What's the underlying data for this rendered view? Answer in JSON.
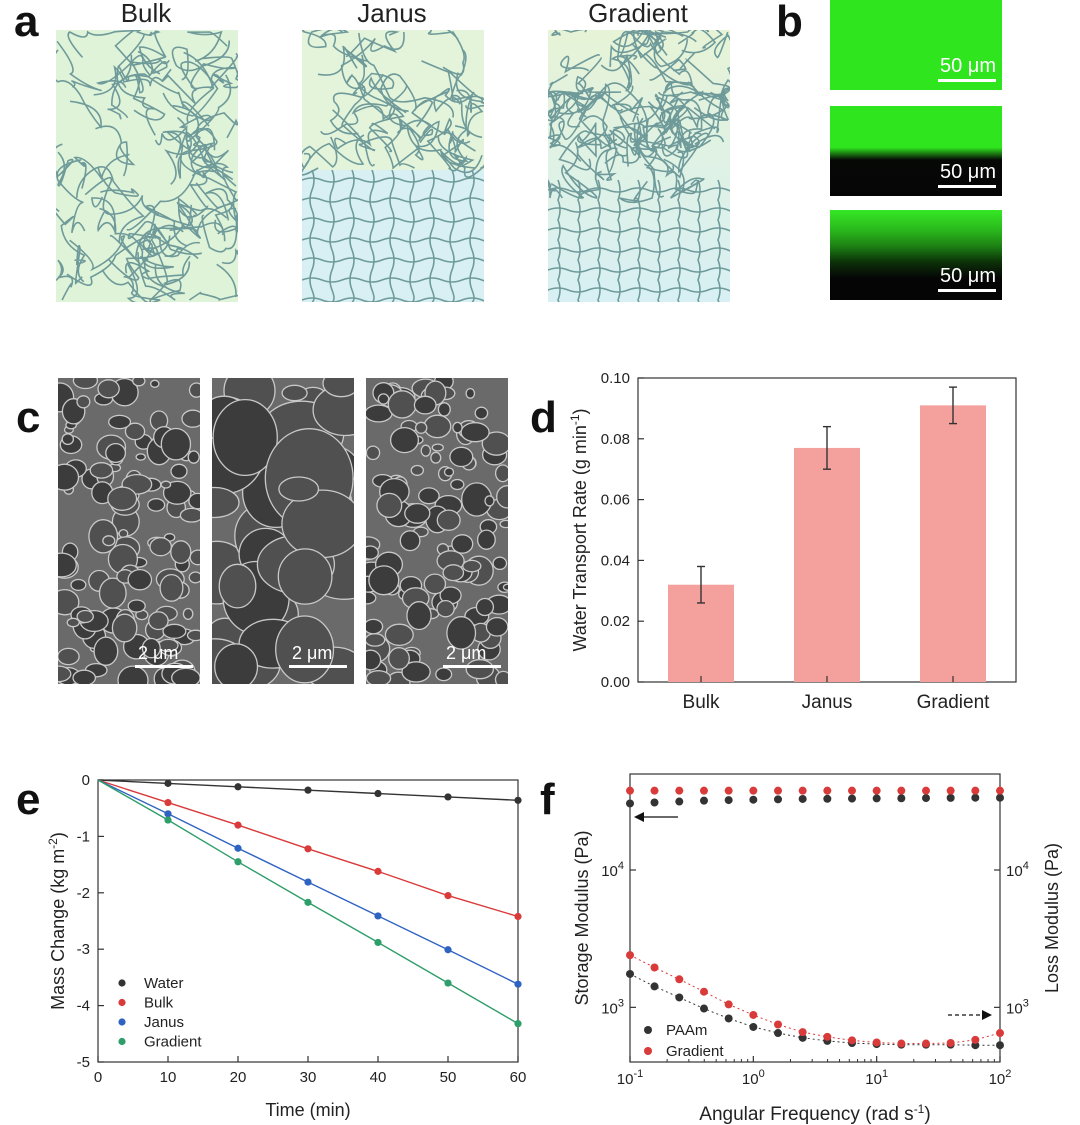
{
  "panel_labels": {
    "a": "a",
    "b": "b",
    "c": "c",
    "d": "d",
    "e": "e",
    "f": "f"
  },
  "panel_a": {
    "titles": [
      "Bulk",
      "Janus",
      "Gradient"
    ]
  },
  "panel_b": {
    "scale_labels": [
      "50 μm",
      "50 μm",
      "50 μm"
    ],
    "colors": {
      "fluor": "#2fe61e",
      "dark": "#050505"
    }
  },
  "panel_c": {
    "scale_labels": [
      "2 μm",
      "2 μm",
      "2 μm"
    ]
  },
  "chart_data": [
    {
      "id": "d",
      "type": "bar",
      "categories": [
        "Bulk",
        "Janus",
        "Gradient"
      ],
      "values": [
        0.032,
        0.077,
        0.091
      ],
      "errors": [
        0.006,
        0.007,
        0.006
      ],
      "ylabel": "Water Transport Rate (g min-1)",
      "ylabel_main": "Water Transport Rate (g min",
      "ylabel_sup": "-1",
      "ylabel_tail": ")",
      "ylim": [
        0,
        0.1
      ],
      "yticks": [
        "0.00",
        "0.02",
        "0.04",
        "0.06",
        "0.08",
        "0.10"
      ],
      "bar_color": "#f4a09c"
    },
    {
      "id": "e",
      "type": "line",
      "x": [
        0,
        10,
        20,
        30,
        40,
        50,
        60
      ],
      "series": [
        {
          "name": "Water",
          "color": "#333333",
          "values": [
            0,
            -0.06,
            -0.12,
            -0.18,
            -0.24,
            -0.3,
            -0.36
          ]
        },
        {
          "name": "Bulk",
          "color": "#d93a3a",
          "values": [
            0,
            -0.4,
            -0.8,
            -1.22,
            -1.62,
            -2.05,
            -2.42
          ]
        },
        {
          "name": "Janus",
          "color": "#2f63c2",
          "values": [
            0,
            -0.6,
            -1.21,
            -1.81,
            -2.41,
            -3.01,
            -3.62
          ]
        },
        {
          "name": "Gradient",
          "color": "#2e9e6b",
          "values": [
            0,
            -0.71,
            -1.45,
            -2.17,
            -2.88,
            -3.6,
            -4.32
          ]
        }
      ],
      "xlabel": "Time (min)",
      "ylabel": "Mass Change (kg m-2)",
      "ylabel_main": "Mass Change (kg m",
      "ylabel_sup": "-2",
      "ylabel_tail": ")",
      "xlim": [
        0,
        60
      ],
      "ylim": [
        -5,
        0
      ],
      "xticks": [
        "0",
        "10",
        "20",
        "30",
        "40",
        "50",
        "60"
      ],
      "yticks": [
        "0",
        "-1",
        "-2",
        "-3",
        "-4",
        "-5"
      ],
      "legend": "bottom-left"
    },
    {
      "id": "f",
      "type": "scatter",
      "x_scale": "log",
      "y_scale": "log",
      "x": [
        0.1,
        0.158,
        0.251,
        0.398,
        0.631,
        1,
        1.585,
        2.512,
        3.981,
        6.31,
        10,
        15.85,
        25.12,
        39.81,
        63.1,
        100
      ],
      "series": [
        {
          "name": "PAAm",
          "kind": "storage",
          "color": "#333333",
          "values": [
            30500,
            31000,
            31500,
            32000,
            32300,
            32500,
            32700,
            32900,
            33000,
            33100,
            33200,
            33300,
            33400,
            33500,
            33600,
            33600
          ]
        },
        {
          "name": "Gradient",
          "kind": "storage",
          "color": "#d93a3a",
          "values": [
            37800,
            37800,
            37800,
            37800,
            37800,
            37800,
            37800,
            37800,
            37800,
            37800,
            37800,
            37800,
            37800,
            37800,
            37800,
            37800
          ]
        },
        {
          "name": "PAAm",
          "kind": "loss",
          "color": "#333333",
          "values": [
            1750,
            1420,
            1180,
            980,
            830,
            720,
            650,
            600,
            570,
            550,
            540,
            535,
            535,
            535,
            530,
            530
          ]
        },
        {
          "name": "Gradient",
          "kind": "loss",
          "color": "#d93a3a",
          "values": [
            2400,
            1950,
            1600,
            1300,
            1050,
            880,
            750,
            660,
            610,
            575,
            555,
            545,
            545,
            550,
            580,
            650
          ]
        }
      ],
      "xlabel": "Angular Frequency (rad s-1)",
      "xlabel_main": "Angular Frequency (rad s",
      "xlabel_sup": "-1",
      "xlabel_tail": ")",
      "ylabel_left": "Storage Modulus (Pa)",
      "ylabel_right": "Loss Modulus (Pa)",
      "xlim": [
        0.1,
        100
      ],
      "ylim": [
        400,
        50000
      ],
      "xticks": [
        {
          "value": 0.1,
          "base": "10",
          "exp": "-1"
        },
        {
          "value": 1,
          "base": "10",
          "exp": "0"
        },
        {
          "value": 10,
          "base": "10",
          "exp": "1"
        },
        {
          "value": 100,
          "base": "10",
          "exp": "2"
        }
      ],
      "yticks": [
        {
          "value": 1000,
          "base": "10",
          "exp": "3"
        },
        {
          "value": 10000,
          "base": "10",
          "exp": "4"
        }
      ],
      "legend_entries": [
        "PAAm",
        "Gradient"
      ],
      "legend": "bottom-left"
    }
  ]
}
